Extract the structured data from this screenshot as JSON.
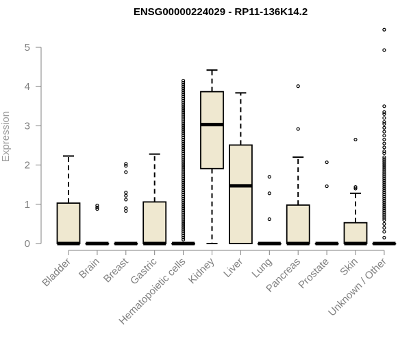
{
  "chart_data": {
    "type": "boxplot",
    "title": "ENSG00000224029 - RP11-136K14.2",
    "xlabel": "",
    "ylabel": "Expression",
    "ylim": [
      0,
      5.5
    ],
    "yticks": [
      0,
      1,
      2,
      3,
      4,
      5
    ],
    "grid": false,
    "box_fill": "#efe8d0",
    "categories": [
      "Bladder",
      "Brain",
      "Breast",
      "Gastric",
      "Hematopoietic cells",
      "Kidney",
      "Liver",
      "Lung",
      "Pancreas",
      "Prostate",
      "Skin",
      "Unknown / Other"
    ],
    "boxes": [
      {
        "q1": 0,
        "median": 0,
        "q3": 1.03,
        "whisker_low": 0,
        "whisker_high": 2.23,
        "outliers": []
      },
      {
        "q1": 0,
        "median": 0,
        "q3": 0,
        "whisker_low": 0,
        "whisker_high": 0,
        "outliers": [
          0.88,
          0.92,
          0.97
        ]
      },
      {
        "q1": 0,
        "median": 0,
        "q3": 0,
        "whisker_low": 0,
        "whisker_high": 0,
        "outliers": [
          0.83,
          0.9,
          1.12,
          1.22,
          1.3,
          1.82,
          1.98,
          2.03
        ]
      },
      {
        "q1": 0,
        "median": 0,
        "q3": 1.06,
        "whisker_low": 0,
        "whisker_high": 2.28,
        "outliers": []
      },
      {
        "q1": 0,
        "median": 0,
        "q3": 0,
        "whisker_low": 0,
        "whisker_high": 0,
        "outliers": [
          0.1,
          0.15,
          0.2,
          0.25,
          0.3,
          0.35,
          0.4,
          0.45,
          0.5,
          0.55,
          0.6,
          0.65,
          0.7,
          0.75,
          0.8,
          0.85,
          0.9,
          0.95,
          1.0,
          1.05,
          1.1,
          1.15,
          1.2,
          1.25,
          1.3,
          1.35,
          1.4,
          1.45,
          1.5,
          1.55,
          1.6,
          1.65,
          1.7,
          1.75,
          1.8,
          1.85,
          1.9,
          1.95,
          2.0,
          2.05,
          2.1,
          2.15,
          2.2,
          2.25,
          2.3,
          2.35,
          2.4,
          2.45,
          2.5,
          2.55,
          2.6,
          2.65,
          2.7,
          2.75,
          2.8,
          2.85,
          2.9,
          2.95,
          3.0,
          3.05,
          3.1,
          3.15,
          3.2,
          3.25,
          3.3,
          3.35,
          3.4,
          3.45,
          3.5,
          3.55,
          3.6,
          3.65,
          3.7,
          3.75,
          3.8,
          3.85,
          3.9,
          3.95,
          4.0,
          4.05,
          4.1,
          4.15
        ]
      },
      {
        "q1": 1.91,
        "median": 3.03,
        "q3": 3.87,
        "whisker_low": 0,
        "whisker_high": 4.42,
        "outliers": []
      },
      {
        "q1": 0,
        "median": 1.47,
        "q3": 2.51,
        "whisker_low": 0,
        "whisker_high": 3.84,
        "outliers": []
      },
      {
        "q1": 0,
        "median": 0,
        "q3": 0,
        "whisker_low": 0,
        "whisker_high": 0,
        "outliers": [
          0.62,
          1.28,
          1.7
        ]
      },
      {
        "q1": 0,
        "median": 0,
        "q3": 0.98,
        "whisker_low": 0,
        "whisker_high": 2.2,
        "outliers": [
          2.92,
          4.01
        ]
      },
      {
        "q1": 0,
        "median": 0,
        "q3": 0,
        "whisker_low": 0,
        "whisker_high": 0,
        "outliers": [
          1.46,
          2.07
        ]
      },
      {
        "q1": 0,
        "median": 0,
        "q3": 0.53,
        "whisker_low": 0,
        "whisker_high": 1.28,
        "outliers": [
          1.4,
          1.44,
          2.65
        ]
      },
      {
        "q1": 0,
        "median": 0,
        "q3": 0,
        "whisker_low": 0,
        "whisker_high": 0,
        "outliers": [
          0.15,
          0.3,
          0.4,
          0.5,
          0.6,
          0.65,
          0.7,
          0.75,
          0.8,
          0.85,
          0.9,
          0.95,
          1.0,
          1.05,
          1.1,
          1.15,
          1.2,
          1.25,
          1.3,
          1.35,
          1.4,
          1.45,
          1.5,
          1.55,
          1.6,
          1.65,
          1.7,
          1.75,
          1.8,
          1.85,
          1.9,
          1.95,
          2.0,
          2.05,
          2.1,
          2.15,
          2.2,
          2.3,
          2.35,
          2.45,
          2.55,
          2.65,
          2.75,
          2.85,
          2.95,
          3.05,
          3.1,
          3.2,
          3.3,
          3.35,
          3.5,
          4.93,
          5.45
        ]
      }
    ]
  }
}
